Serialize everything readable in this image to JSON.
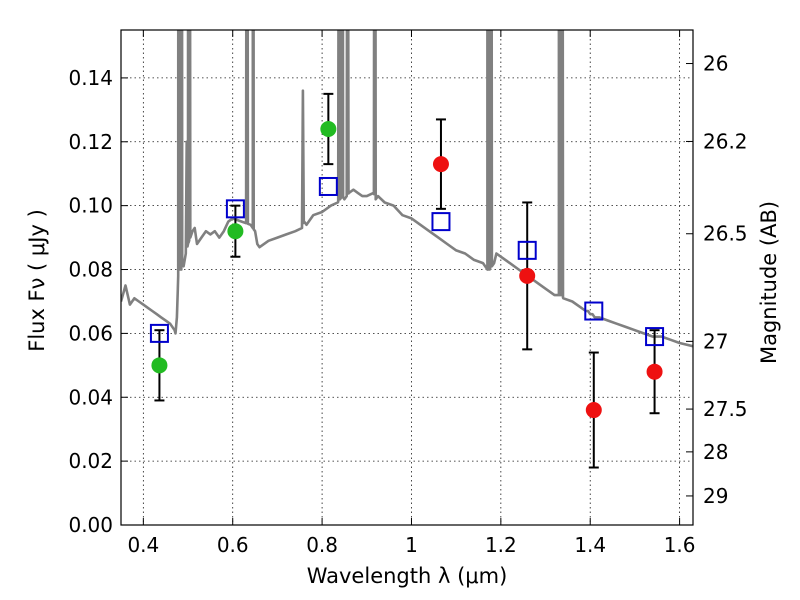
{
  "chart_data": {
    "type": "scatter",
    "xlabel": "Wavelength  λ (μm)",
    "ylabel": "Flux  Fν  ( μJy )",
    "y2label": "Magnitude (AB)",
    "xlim": [
      0.35,
      1.63
    ],
    "ylim": [
      0.0,
      0.155
    ],
    "grid": true,
    "xticks": [
      "0.4",
      "0.6",
      "0.8",
      "1",
      "1.2",
      "1.4",
      "1.6"
    ],
    "xtick_values": [
      0.4,
      0.6,
      0.8,
      1.0,
      1.2,
      1.4,
      1.6
    ],
    "yticks": [
      "0.00",
      "0.02",
      "0.04",
      "0.06",
      "0.08",
      "0.10",
      "0.12",
      "0.14"
    ],
    "ytick_values": [
      0.0,
      0.02,
      0.04,
      0.06,
      0.08,
      0.1,
      0.12,
      0.14
    ],
    "y2ticks": [
      {
        "label": "26",
        "flux": 0.1445
      },
      {
        "label": "26.2",
        "flux": 0.1201
      },
      {
        "label": "26.5",
        "flux": 0.0912
      },
      {
        "label": "27",
        "flux": 0.0575
      },
      {
        "label": "27.5",
        "flux": 0.0363
      },
      {
        "label": "28",
        "flux": 0.0229
      },
      {
        "label": "29",
        "flux": 0.0091
      }
    ],
    "colors": {
      "model": "#808080",
      "observed_green": "#22bb22",
      "observed_red": "#ee1111",
      "model_photometry": "#0000cc",
      "errorbar": "#000000"
    },
    "series": [
      {
        "kind": "spectrum",
        "color": "#808080",
        "x": [
          0.35,
          0.36,
          0.37,
          0.38,
          0.39,
          0.4,
          0.41,
          0.42,
          0.43,
          0.44,
          0.45,
          0.46,
          0.47,
          0.472,
          0.475,
          0.478,
          0.48,
          0.482,
          0.485,
          0.487,
          0.49,
          0.495,
          0.5,
          0.505,
          0.51,
          0.515,
          0.52,
          0.53,
          0.54,
          0.55,
          0.56,
          0.57,
          0.58,
          0.59,
          0.6,
          0.62,
          0.64,
          0.645,
          0.65,
          0.655,
          0.66,
          0.68,
          0.7,
          0.72,
          0.74,
          0.755,
          0.76,
          0.765,
          0.78,
          0.8,
          0.82,
          0.835,
          0.84,
          0.845,
          0.85,
          0.855,
          0.86,
          0.87,
          0.88,
          0.89,
          0.9,
          0.915,
          0.92,
          0.925,
          0.94,
          0.96,
          0.98,
          1.0,
          1.02,
          1.04,
          1.06,
          1.08,
          1.1,
          1.12,
          1.14,
          1.16,
          1.17,
          1.175,
          1.18,
          1.185,
          1.19,
          1.2,
          1.22,
          1.24,
          1.26,
          1.28,
          1.3,
          1.32,
          1.325,
          1.33,
          1.335,
          1.34,
          1.36,
          1.38,
          1.39,
          1.395,
          1.4,
          1.405,
          1.41,
          1.42,
          1.44,
          1.46,
          1.48,
          1.5,
          1.52,
          1.54,
          1.56,
          1.58,
          1.6,
          1.63
        ],
        "y": [
          0.07,
          0.075,
          0.069,
          0.071,
          0.07,
          0.069,
          0.068,
          0.067,
          0.066,
          0.065,
          0.064,
          0.063,
          0.061,
          0.06,
          0.065,
          0.078,
          0.08,
          0.08,
          0.08,
          0.082,
          0.081,
          0.085,
          0.088,
          0.09,
          0.092,
          0.093,
          0.088,
          0.09,
          0.092,
          0.091,
          0.092,
          0.09,
          0.092,
          0.095,
          0.096,
          0.095,
          0.094,
          0.093,
          0.092,
          0.088,
          0.087,
          0.089,
          0.09,
          0.091,
          0.092,
          0.093,
          0.095,
          0.094,
          0.097,
          0.098,
          0.1,
          0.101,
          0.102,
          0.103,
          0.102,
          0.103,
          0.104,
          0.105,
          0.104,
          0.103,
          0.103,
          0.104,
          0.102,
          0.103,
          0.101,
          0.1,
          0.097,
          0.096,
          0.094,
          0.092,
          0.09,
          0.088,
          0.086,
          0.085,
          0.083,
          0.082,
          0.08,
          0.08,
          0.081,
          0.082,
          0.085,
          0.084,
          0.082,
          0.08,
          0.078,
          0.076,
          0.074,
          0.072,
          0.072,
          0.072,
          0.072,
          0.071,
          0.07,
          0.068,
          0.067,
          0.067,
          0.066,
          0.066,
          0.065,
          0.065,
          0.064,
          0.063,
          0.062,
          0.061,
          0.06,
          0.059,
          0.059,
          0.058,
          0.057,
          0.056
        ]
      },
      {
        "kind": "model-photometry",
        "color": "#0000cc",
        "marker": "open-square",
        "x": [
          0.436,
          0.606,
          0.814,
          1.066,
          1.259,
          1.408,
          1.544
        ],
        "y": [
          0.06,
          0.099,
          0.106,
          0.095,
          0.086,
          0.067,
          0.059
        ]
      },
      {
        "kind": "observed",
        "color": "#22bb22",
        "marker": "filled-circle",
        "x": [
          0.436,
          0.606,
          0.814
        ],
        "y": [
          0.05,
          0.092,
          0.124
        ],
        "yerr": [
          0.011,
          0.008,
          0.011
        ]
      },
      {
        "kind": "observed",
        "color": "#ee1111",
        "marker": "filled-circle",
        "x": [
          1.066,
          1.259,
          1.408,
          1.544
        ],
        "y": [
          0.113,
          0.078,
          0.036,
          0.048
        ],
        "yerr": [
          0.014,
          0.023,
          0.018,
          0.013
        ]
      }
    ]
  }
}
